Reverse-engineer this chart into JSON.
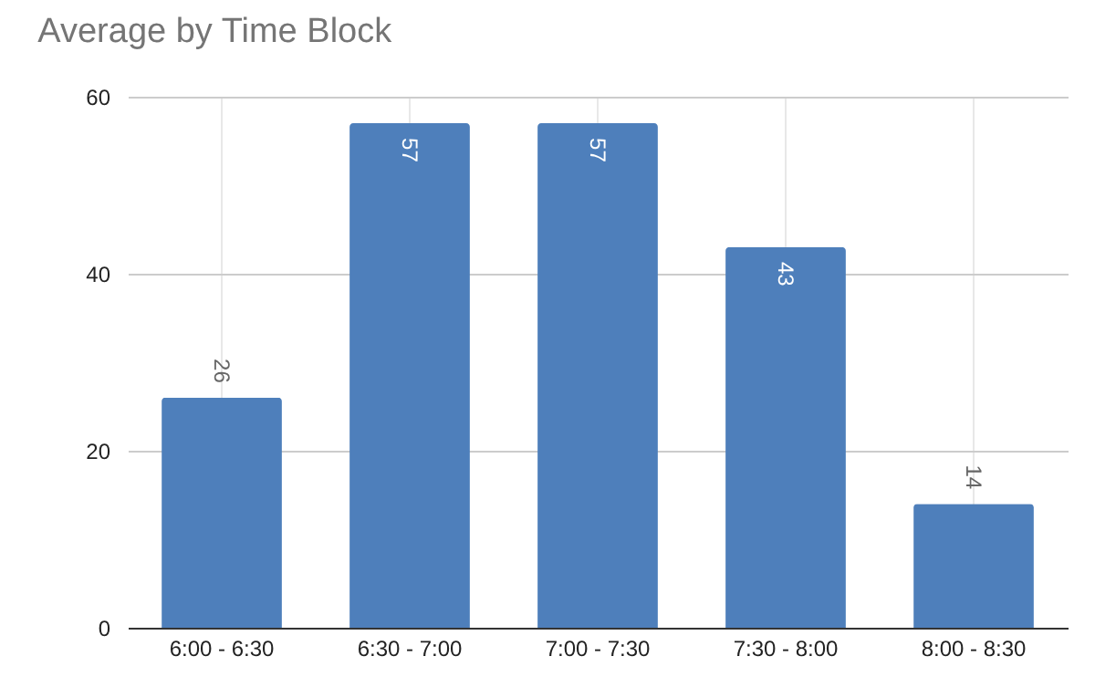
{
  "chart_data": {
    "type": "bar",
    "title": "Average by Time Block",
    "categories": [
      "6:00 - 6:30",
      "6:30 - 7:00",
      "7:00 - 7:30",
      "7:30 - 8:00",
      "8:00 - 8:30"
    ],
    "values": [
      26,
      57,
      57,
      43,
      14
    ],
    "color": "#4e7fbb",
    "ylim": [
      0,
      60
    ],
    "yticks": [
      0,
      20,
      40,
      60
    ],
    "grid": true,
    "data_labels": true
  }
}
